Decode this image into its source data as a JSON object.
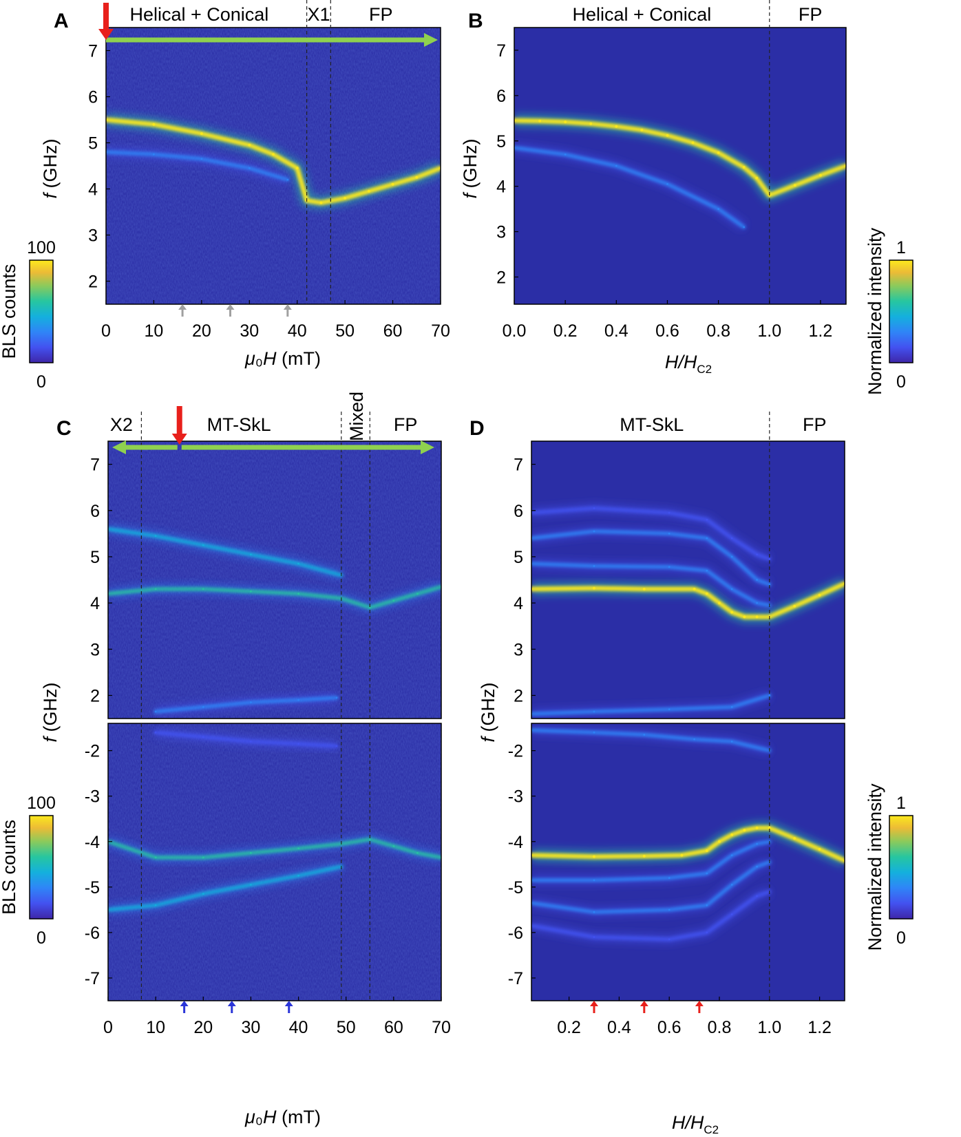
{
  "colors": {
    "bg": "#2b2ea6",
    "green_arrow": "#8fd14f",
    "red_arrow": "#e8201b",
    "gray_arrow": "#a0a0a0",
    "blue_arrow": "#2a35d8",
    "colormap": [
      "#3e26a8",
      "#4352f0",
      "#2f85f7",
      "#14b0dd",
      "#27c6a0",
      "#8cca5b",
      "#ecbb36",
      "#fce91d"
    ]
  },
  "chart_data": [
    {
      "panel": "A",
      "type": "heatmap",
      "title": "",
      "xlabel": "μ₀H (mT)",
      "ylabel": "f (GHz)",
      "xlim": [
        0,
        70
      ],
      "ylim": [
        1.5,
        7.5
      ],
      "xticks": [
        "0",
        "10",
        "20",
        "30",
        "40",
        "50",
        "60",
        "70"
      ],
      "yticks": [
        "2",
        "3",
        "4",
        "5",
        "6",
        "7"
      ],
      "regions": [
        "Helical + Conical",
        "X1",
        "FP"
      ],
      "boundaries": [
        42,
        47
      ],
      "colorbar": {
        "label": "BLS counts",
        "max": "100",
        "min": "0"
      },
      "gray_arrows_x": [
        16,
        26,
        38
      ],
      "red_arrow_x": 0,
      "green_arrow": {
        "from": 0,
        "to": 70
      },
      "series": [
        {
          "name": "main",
          "x": [
            0,
            10,
            20,
            30,
            35,
            40,
            42,
            45,
            50,
            55,
            60,
            65,
            70
          ],
          "y": [
            5.5,
            5.4,
            5.2,
            4.95,
            4.75,
            4.45,
            3.75,
            3.7,
            3.8,
            3.95,
            4.1,
            4.25,
            4.45
          ],
          "intensity": 1.0
        },
        {
          "name": "secondary",
          "x": [
            0,
            10,
            20,
            30,
            38
          ],
          "y": [
            4.8,
            4.75,
            4.65,
            4.45,
            4.2
          ],
          "intensity": 0.3
        }
      ]
    },
    {
      "panel": "B",
      "type": "heatmap",
      "xlabel": "H/H_C2",
      "ylabel": "f (GHz)",
      "xlim": [
        0,
        1.3
      ],
      "ylim": [
        1.4,
        7.5
      ],
      "xticks": [
        "0.0",
        "0.2",
        "0.4",
        "0.6",
        "0.8",
        "1.0",
        "1.2"
      ],
      "yticks": [
        "2",
        "3",
        "4",
        "5",
        "6",
        "7"
      ],
      "regions": [
        "Helical + Conical",
        "FP"
      ],
      "boundaries": [
        1.0
      ],
      "colorbar": {
        "label": "Normalized intensity",
        "max": "1",
        "min": "0"
      },
      "series": [
        {
          "name": "main",
          "x": [
            0,
            0.1,
            0.2,
            0.3,
            0.4,
            0.5,
            0.6,
            0.7,
            0.8,
            0.9,
            0.95,
            1.0,
            1.1,
            1.2,
            1.3
          ],
          "y": [
            5.45,
            5.44,
            5.42,
            5.38,
            5.32,
            5.24,
            5.12,
            4.96,
            4.74,
            4.42,
            4.18,
            3.8,
            4.02,
            4.24,
            4.45
          ],
          "intensity": 1.0
        },
        {
          "name": "secondary",
          "x": [
            0,
            0.2,
            0.4,
            0.6,
            0.8,
            0.9
          ],
          "y": [
            4.85,
            4.7,
            4.45,
            4.05,
            3.5,
            3.1
          ],
          "intensity": 0.25
        }
      ]
    },
    {
      "panel": "C",
      "type": "heatmap",
      "xlabel": "μ₀H (mT)",
      "ylabel": "f (GHz)",
      "xlim": [
        0,
        70
      ],
      "ylim_top": [
        1.5,
        7.5
      ],
      "ylim_bottom": [
        -7.5,
        -1.4
      ],
      "xticks": [
        "0",
        "10",
        "20",
        "30",
        "40",
        "50",
        "60",
        "70"
      ],
      "yticks_top": [
        "2",
        "3",
        "4",
        "5",
        "6",
        "7"
      ],
      "yticks_bottom": [
        "-2",
        "-3",
        "-4",
        "-5",
        "-6",
        "-7"
      ],
      "regions": [
        "X2",
        "MT-SkL",
        "Mixed",
        "FP"
      ],
      "boundaries": [
        7,
        49,
        55
      ],
      "colorbar": {
        "label": "BLS counts",
        "max": "100",
        "min": "0"
      },
      "blue_arrows_x": [
        16,
        26,
        38
      ],
      "red_arrow_x": 15,
      "green_arrow": {
        "from": 15,
        "to_left": 0,
        "to_right": 70
      },
      "series_top": [
        {
          "name": "upper",
          "x": [
            0,
            10,
            20,
            30,
            40,
            49
          ],
          "y": [
            5.6,
            5.45,
            5.25,
            5.05,
            4.85,
            4.6
          ],
          "intensity": 0.45
        },
        {
          "name": "main",
          "x": [
            0,
            10,
            20,
            30,
            40,
            49,
            55,
            60,
            65,
            70
          ],
          "y": [
            4.2,
            4.3,
            4.3,
            4.25,
            4.2,
            4.1,
            3.9,
            4.05,
            4.2,
            4.35
          ],
          "intensity": 0.5
        },
        {
          "name": "low",
          "x": [
            10,
            20,
            30,
            40,
            48
          ],
          "y": [
            1.65,
            1.75,
            1.85,
            1.9,
            1.95
          ],
          "intensity": 0.3
        }
      ],
      "series_bottom": [
        {
          "name": "main",
          "x": [
            0,
            10,
            20,
            30,
            40,
            49,
            55,
            60,
            65,
            70
          ],
          "y": [
            -4.0,
            -4.35,
            -4.35,
            -4.25,
            -4.15,
            -4.05,
            -3.95,
            -4.1,
            -4.25,
            -4.35
          ],
          "intensity": 0.6
        },
        {
          "name": "lower",
          "x": [
            0,
            10,
            20,
            30,
            40,
            49
          ],
          "y": [
            -5.5,
            -5.4,
            -5.15,
            -4.95,
            -4.75,
            -4.55
          ],
          "intensity": 0.4
        },
        {
          "name": "upper",
          "x": [
            10,
            20,
            30,
            40,
            48
          ],
          "y": [
            -1.6,
            -1.7,
            -1.8,
            -1.85,
            -1.9
          ],
          "intensity": 0.2
        }
      ]
    },
    {
      "panel": "D",
      "type": "heatmap",
      "xlabel": "H/H_C2",
      "ylabel": "f (GHz)",
      "xlim": [
        0.05,
        1.3
      ],
      "ylim_top": [
        1.5,
        7.5
      ],
      "ylim_bottom": [
        -7.5,
        -1.4
      ],
      "xticks": [
        "0.2",
        "0.4",
        "0.6",
        "0.8",
        "1.0",
        "1.2"
      ],
      "yticks_top": [
        "2",
        "3",
        "4",
        "5",
        "6",
        "7"
      ],
      "yticks_bottom": [
        "-2",
        "-3",
        "-4",
        "-5",
        "-6",
        "-7"
      ],
      "regions": [
        "MT-SkL",
        "FP"
      ],
      "boundaries": [
        1.0
      ],
      "colorbar": {
        "label": "Normalized intensity",
        "max": "1",
        "min": "0"
      },
      "red_arrows_x": [
        0.3,
        0.5,
        0.72
      ],
      "series_top": [
        {
          "name": "main",
          "x": [
            0.05,
            0.3,
            0.5,
            0.7,
            0.75,
            0.8,
            0.85,
            0.9,
            0.95,
            1.0,
            1.1,
            1.2,
            1.3
          ],
          "y": [
            4.3,
            4.32,
            4.3,
            4.3,
            4.2,
            4.0,
            3.8,
            3.7,
            3.7,
            3.7,
            3.93,
            4.17,
            4.42
          ],
          "intensity": 1.0
        },
        {
          "name": "m2",
          "x": [
            0.05,
            0.3,
            0.6,
            0.75,
            0.85,
            0.95,
            1.0
          ],
          "y": [
            4.85,
            4.8,
            4.78,
            4.7,
            4.3,
            4.0,
            3.95
          ],
          "intensity": 0.35
        },
        {
          "name": "m3",
          "x": [
            0.05,
            0.3,
            0.6,
            0.75,
            0.85,
            0.95,
            1.0
          ],
          "y": [
            5.4,
            5.55,
            5.5,
            5.4,
            5.0,
            4.5,
            4.4
          ],
          "intensity": 0.3
        },
        {
          "name": "m4",
          "x": [
            0.05,
            0.3,
            0.6,
            0.75,
            0.85,
            0.95,
            1.0
          ],
          "y": [
            5.95,
            6.05,
            5.95,
            5.8,
            5.4,
            5.05,
            4.95
          ],
          "intensity": 0.18
        },
        {
          "name": "low",
          "x": [
            0.05,
            0.3,
            0.6,
            0.85,
            1.0
          ],
          "y": [
            1.6,
            1.65,
            1.7,
            1.75,
            2.0
          ],
          "intensity": 0.35
        }
      ],
      "series_bottom": [
        {
          "name": "main",
          "x": [
            0.05,
            0.3,
            0.5,
            0.65,
            0.75,
            0.8,
            0.85,
            0.9,
            0.95,
            1.0,
            1.1,
            1.2,
            1.3
          ],
          "y": [
            -4.3,
            -4.33,
            -4.32,
            -4.3,
            -4.2,
            -4.0,
            -3.85,
            -3.75,
            -3.7,
            -3.7,
            -3.93,
            -4.17,
            -4.42
          ],
          "intensity": 1.0
        },
        {
          "name": "m2",
          "x": [
            0.05,
            0.3,
            0.6,
            0.75,
            0.85,
            0.95,
            1.0
          ],
          "y": [
            -4.85,
            -4.85,
            -4.8,
            -4.7,
            -4.3,
            -4.05,
            -4.0
          ],
          "intensity": 0.35
        },
        {
          "name": "m3",
          "x": [
            0.05,
            0.3,
            0.6,
            0.75,
            0.85,
            0.95,
            1.0
          ],
          "y": [
            -5.35,
            -5.55,
            -5.5,
            -5.4,
            -4.95,
            -4.55,
            -4.45
          ],
          "intensity": 0.3
        },
        {
          "name": "m4",
          "x": [
            0.05,
            0.3,
            0.6,
            0.75,
            0.85,
            0.95,
            1.0
          ],
          "y": [
            -5.85,
            -6.1,
            -6.15,
            -6.0,
            -5.6,
            -5.2,
            -5.1
          ],
          "intensity": 0.18
        },
        {
          "name": "upper",
          "x": [
            0.05,
            0.3,
            0.5,
            0.7,
            0.85,
            1.0
          ],
          "y": [
            -1.55,
            -1.6,
            -1.65,
            -1.75,
            -1.8,
            -2.0
          ],
          "intensity": 0.3
        }
      ]
    }
  ]
}
